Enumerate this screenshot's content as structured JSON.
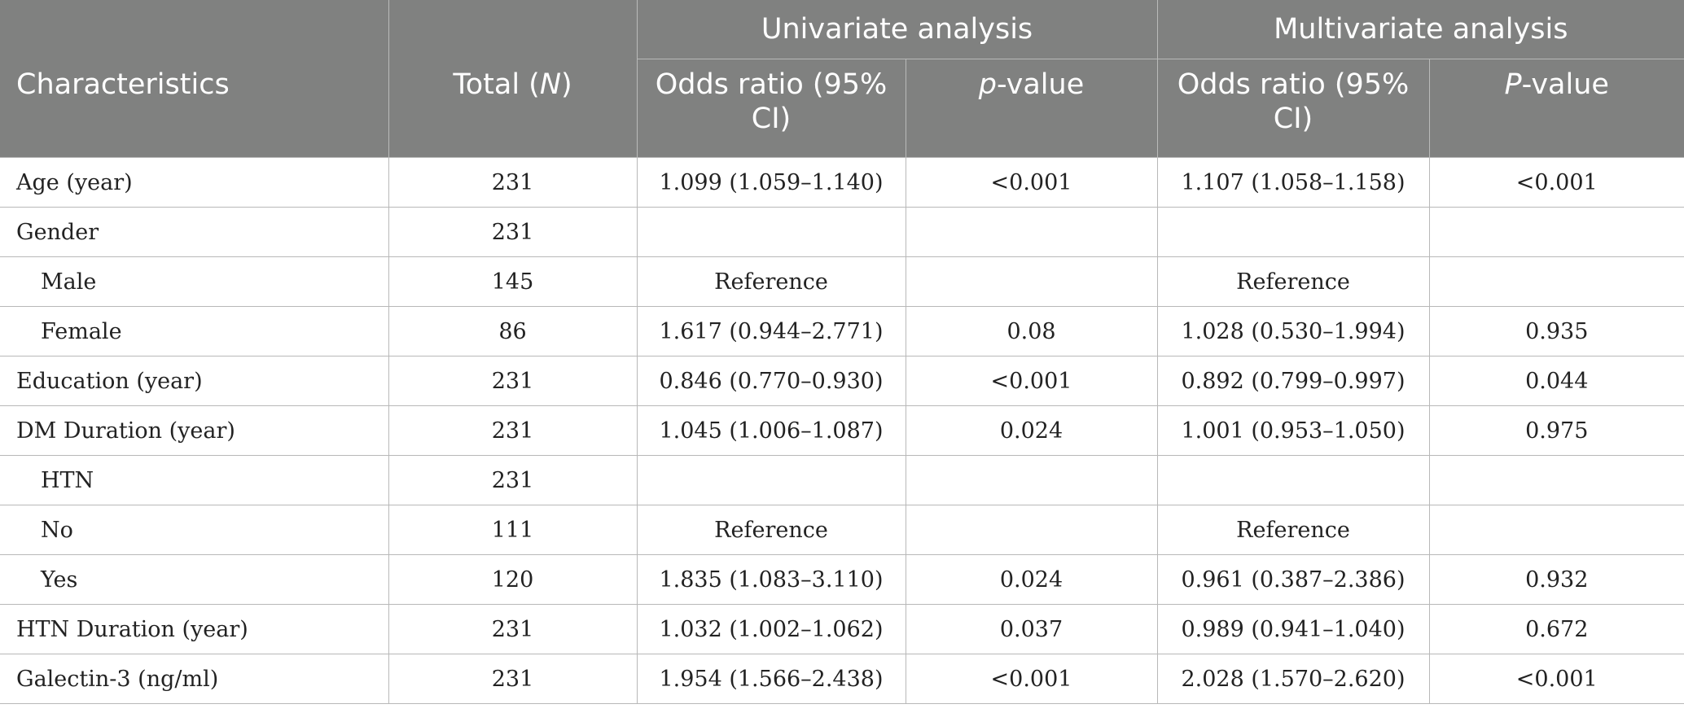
{
  "header": {
    "characteristics": "Characteristics",
    "total_prefix": "Total (",
    "total_n": "N",
    "total_suffix": ")",
    "univariate": "Univariate analysis",
    "multivariate": "Multivariate analysis",
    "uni_or": "Odds ratio (95% CI)",
    "uni_p_italic": "p",
    "uni_p_rest": "-value",
    "multi_or": "Odds ratio (95% CI)",
    "multi_p_italic": "P",
    "multi_p_rest": "-value"
  },
  "rows": [
    {
      "label": "Age (year)",
      "indent": false,
      "total": "231",
      "uni_or": "1.099 (1.059–1.140)",
      "uni_p": "<0.001",
      "multi_or": "1.107 (1.058–1.158)",
      "multi_p": "<0.001"
    },
    {
      "label": "Gender",
      "indent": false,
      "total": "231",
      "uni_or": "",
      "uni_p": "",
      "multi_or": "",
      "multi_p": ""
    },
    {
      "label": "Male",
      "indent": true,
      "total": "145",
      "uni_or": "Reference",
      "uni_p": "",
      "multi_or": "Reference",
      "multi_p": ""
    },
    {
      "label": "Female",
      "indent": true,
      "total": "86",
      "uni_or": "1.617 (0.944–2.771)",
      "uni_p": "0.08",
      "multi_or": "1.028 (0.530–1.994)",
      "multi_p": "0.935"
    },
    {
      "label": "Education (year)",
      "indent": false,
      "total": "231",
      "uni_or": "0.846 (0.770–0.930)",
      "uni_p": "<0.001",
      "multi_or": "0.892 (0.799–0.997)",
      "multi_p": "0.044"
    },
    {
      "label": "DM Duration (year)",
      "indent": false,
      "total": "231",
      "uni_or": "1.045 (1.006–1.087)",
      "uni_p": "0.024",
      "multi_or": "1.001 (0.953–1.050)",
      "multi_p": "0.975"
    },
    {
      "label": "HTN",
      "indent": true,
      "total": "231",
      "uni_or": "",
      "uni_p": "",
      "multi_or": "",
      "multi_p": ""
    },
    {
      "label": "No",
      "indent": true,
      "total": "111",
      "uni_or": "Reference",
      "uni_p": "",
      "multi_or": "Reference",
      "multi_p": ""
    },
    {
      "label": "Yes",
      "indent": true,
      "total": "120",
      "uni_or": "1.835 (1.083–3.110)",
      "uni_p": "0.024",
      "multi_or": "0.961 (0.387–2.386)",
      "multi_p": "0.932"
    },
    {
      "label": "HTN Duration (year)",
      "indent": false,
      "total": "231",
      "uni_or": "1.032 (1.002–1.062)",
      "uni_p": "0.037",
      "multi_or": "0.989 (0.941–1.040)",
      "multi_p": "0.672"
    },
    {
      "label": "Galectin-3 (ng/ml)",
      "indent": false,
      "total": "231",
      "uni_or": "1.954 (1.566–2.438)",
      "uni_p": "<0.001",
      "multi_or": "2.028 (1.570–2.620)",
      "multi_p": "<0.001"
    }
  ]
}
